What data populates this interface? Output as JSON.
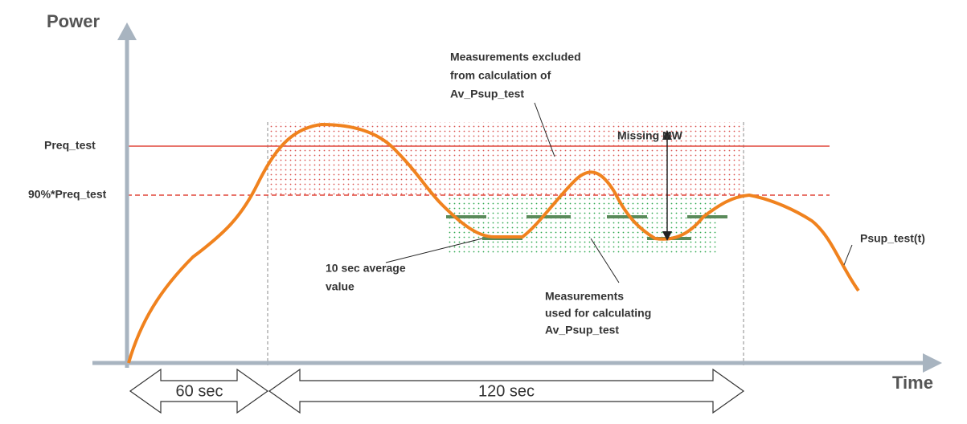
{
  "axes": {
    "y_label": "Power",
    "x_label": "Time"
  },
  "levels": {
    "preq": "Preq_test",
    "preq90": "90%*Preq_test"
  },
  "annotations": {
    "excluded": [
      "Measurements excluded",
      "from calculation of",
      "Av_Psup_test"
    ],
    "missing": "Missing MW",
    "average": [
      "10 sec average",
      "value"
    ],
    "used": [
      "Measurements",
      "used for calculating",
      "Av_Psup_test"
    ],
    "curve": "Psup_test(t)"
  },
  "durations": {
    "first": "60 sec",
    "second": "120 sec"
  }
}
